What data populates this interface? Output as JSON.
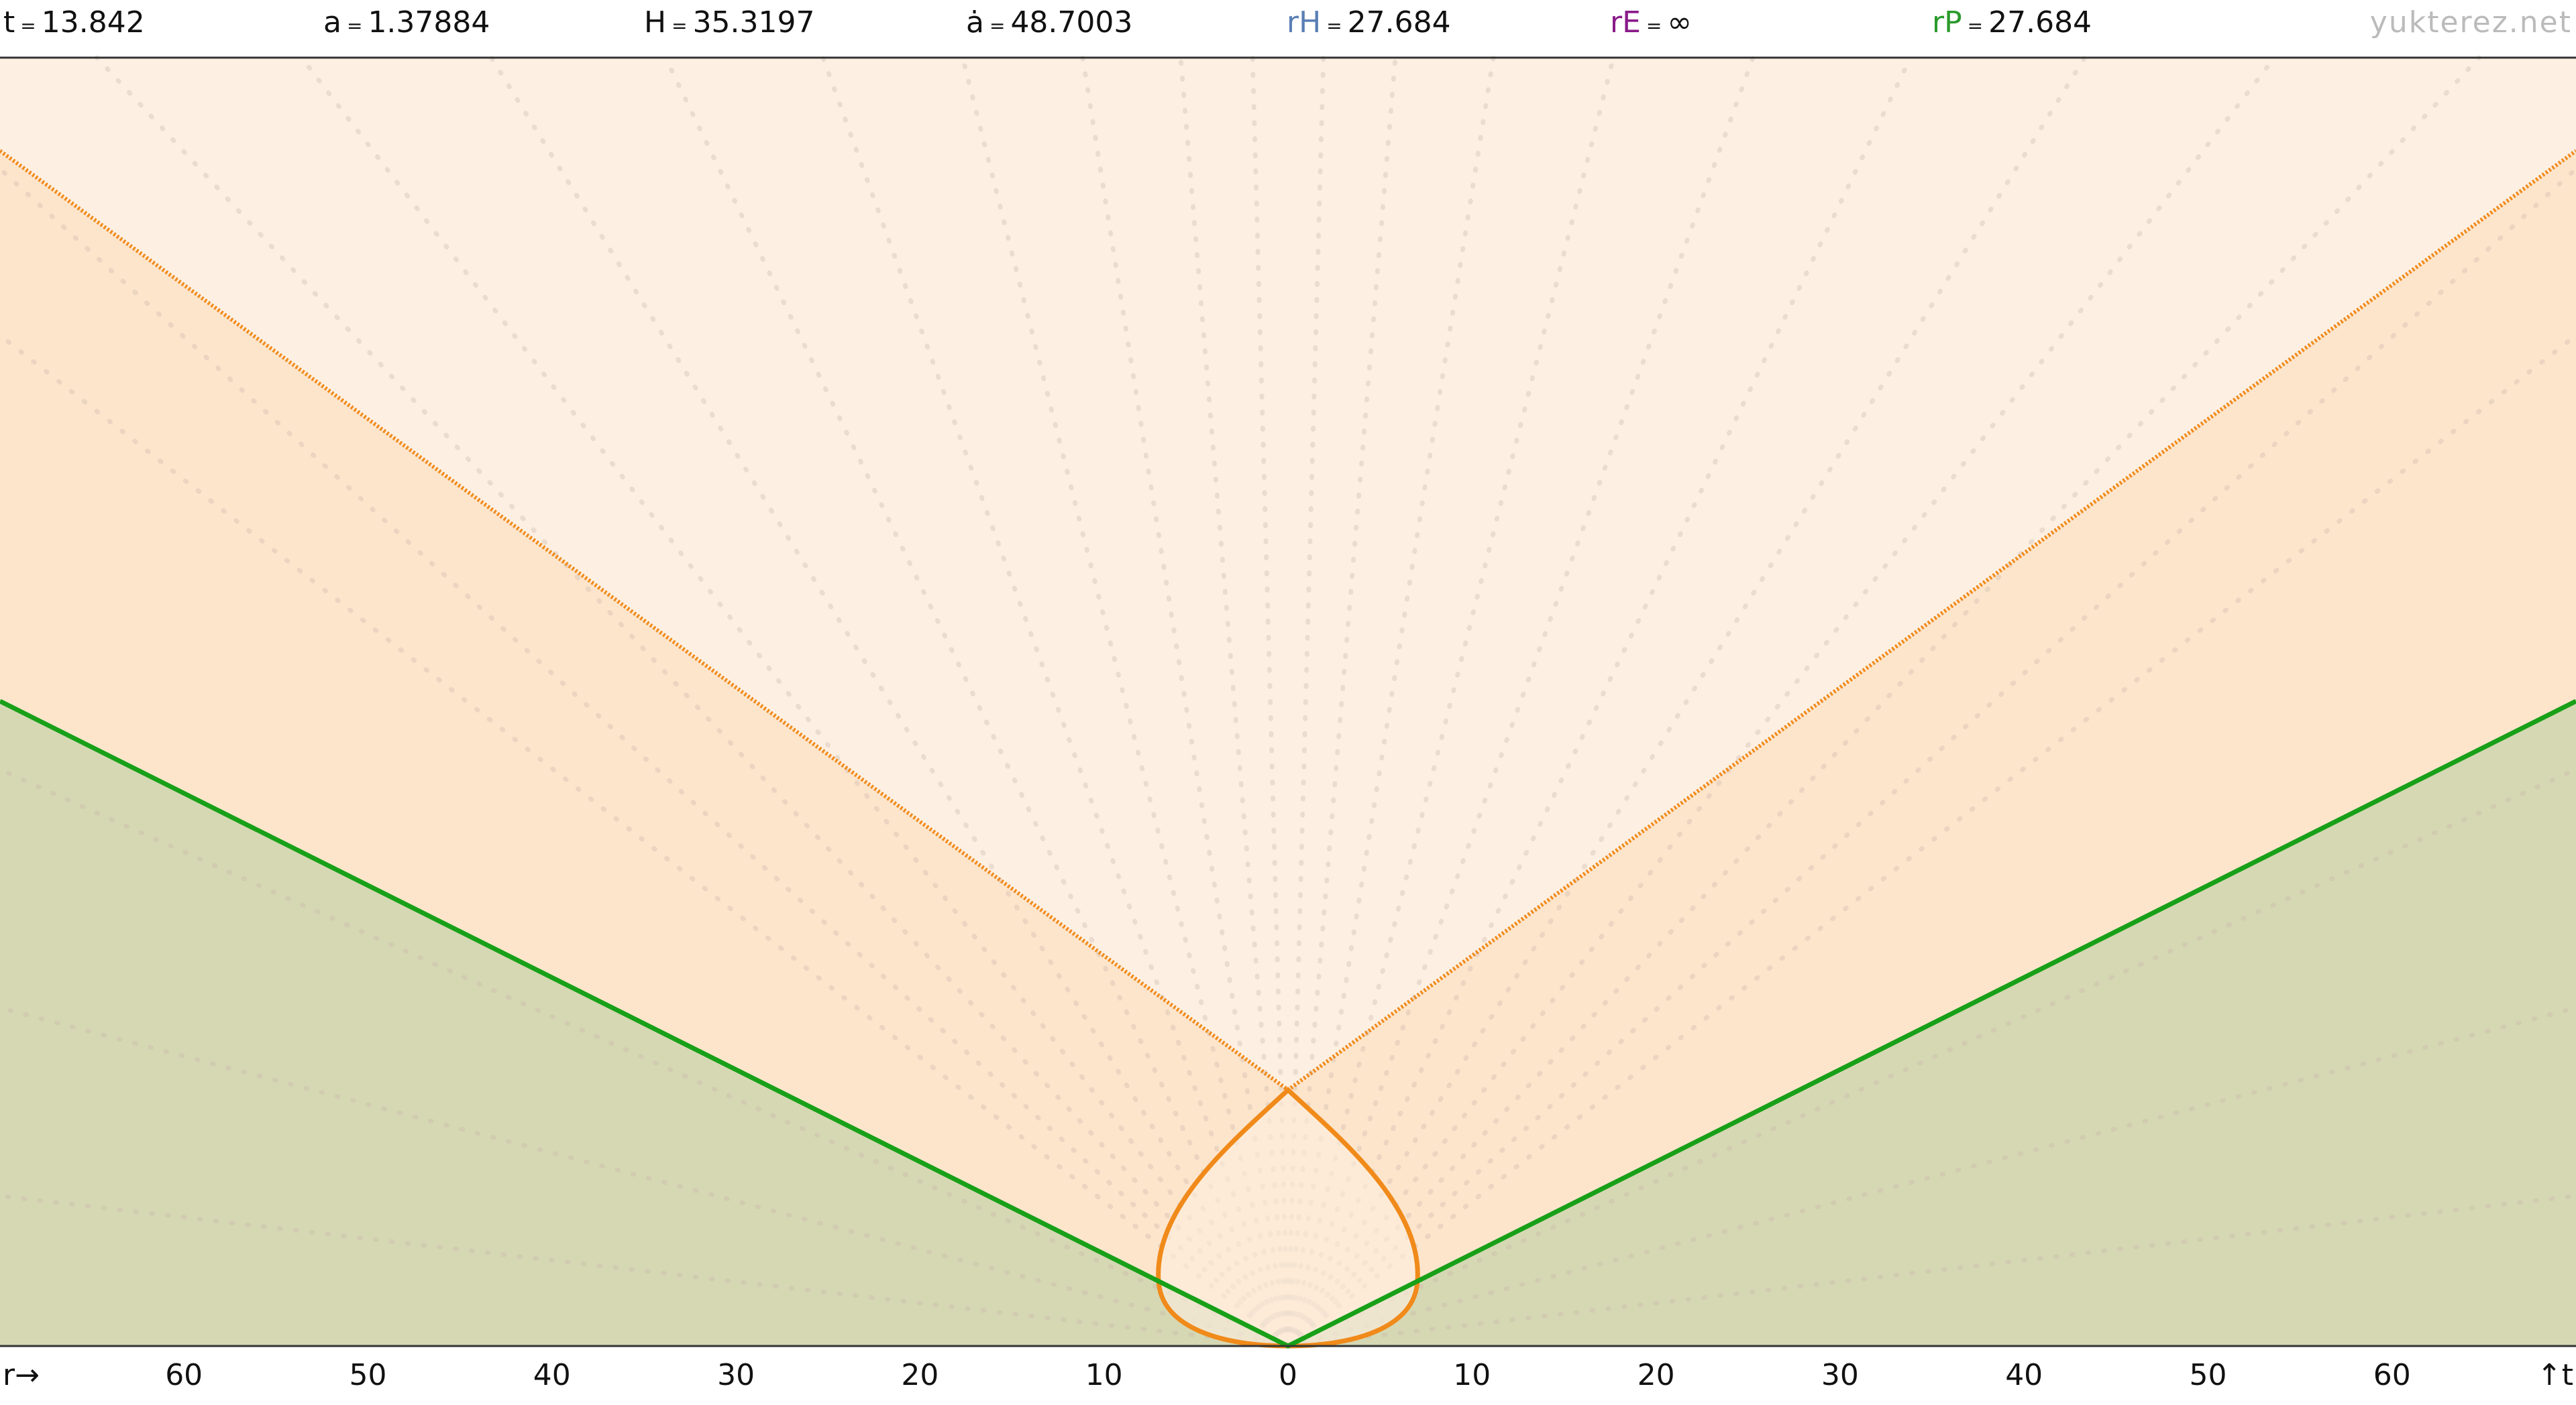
{
  "header": {
    "equals": "=",
    "items": [
      {
        "label": "t",
        "value": 13.842
      },
      {
        "label": "a",
        "value": 1.37884
      },
      {
        "label": "H",
        "value": 35.3197
      },
      {
        "label": "ȧ",
        "value": 48.7003
      },
      {
        "label": "rH",
        "value": 27.684
      },
      {
        "label": "rE",
        "value": "∞"
      },
      {
        "label": "rP",
        "value": 27.684
      }
    ],
    "watermark": "yukterez.net"
  },
  "axis": {
    "start_label": "r→",
    "end_label": "↑t",
    "ticks": [
      60,
      50,
      40,
      30,
      20,
      10,
      0,
      10,
      20,
      30,
      40,
      50,
      60
    ]
  }
}
